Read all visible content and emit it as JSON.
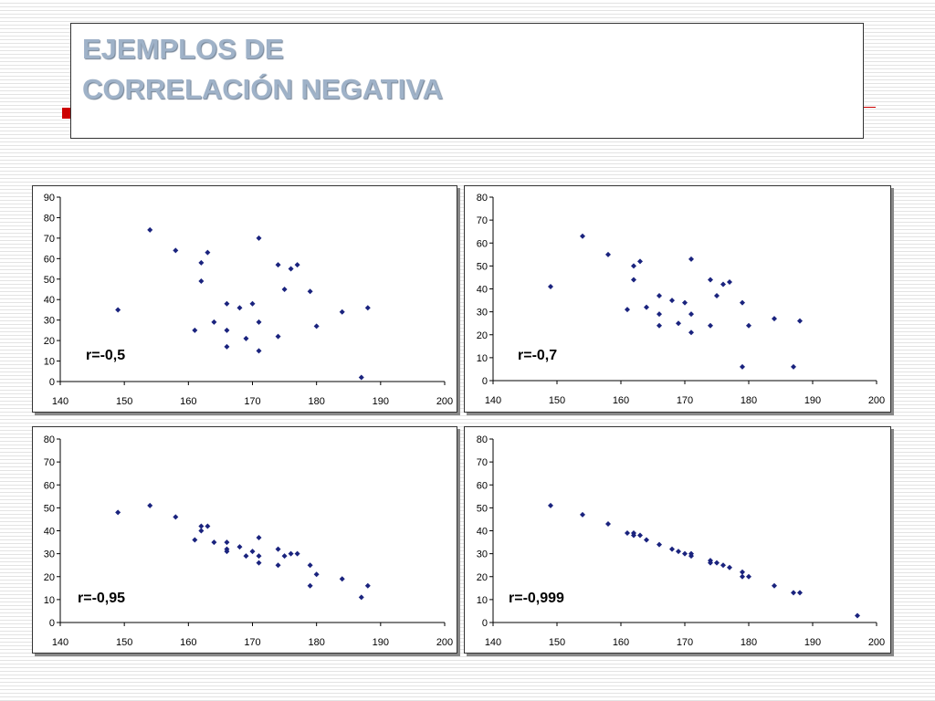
{
  "slide": {
    "title_line1": "EJEMPLOS DE",
    "title_line2": "CORRELACIÓN NEGATIVA"
  },
  "colors": {
    "points": "#1a237e",
    "title": "#9fb2c8",
    "accent": "#cc0000"
  },
  "chart_data": [
    {
      "type": "scatter",
      "annotation": "r=-0,5",
      "xlim": [
        140,
        200
      ],
      "ylim": [
        0,
        90
      ],
      "xticks": [
        140,
        150,
        160,
        170,
        180,
        190,
        200
      ],
      "yticks": [
        0,
        10,
        20,
        30,
        40,
        50,
        60,
        70,
        80,
        90
      ],
      "grid": false,
      "points": [
        [
          149,
          35
        ],
        [
          154,
          74
        ],
        [
          158,
          64
        ],
        [
          161,
          25
        ],
        [
          162,
          58
        ],
        [
          162,
          49
        ],
        [
          163,
          63
        ],
        [
          164,
          29
        ],
        [
          166,
          38
        ],
        [
          166,
          25
        ],
        [
          166,
          17
        ],
        [
          168,
          36
        ],
        [
          169,
          21
        ],
        [
          170,
          38
        ],
        [
          171,
          70
        ],
        [
          171,
          29
        ],
        [
          171,
          15
        ],
        [
          174,
          57
        ],
        [
          174,
          22
        ],
        [
          175,
          45
        ],
        [
          176,
          55
        ],
        [
          177,
          57
        ],
        [
          179,
          44
        ],
        [
          180,
          27
        ],
        [
          184,
          34
        ],
        [
          187,
          2
        ],
        [
          188,
          36
        ]
      ]
    },
    {
      "type": "scatter",
      "annotation": "r=-0,7",
      "xlim": [
        140,
        200
      ],
      "ylim": [
        0,
        80
      ],
      "xticks": [
        140,
        150,
        160,
        170,
        180,
        190,
        200
      ],
      "yticks": [
        0,
        10,
        20,
        30,
        40,
        50,
        60,
        70,
        80
      ],
      "grid": false,
      "points": [
        [
          149,
          41
        ],
        [
          154,
          63
        ],
        [
          158,
          55
        ],
        [
          161,
          31
        ],
        [
          162,
          50
        ],
        [
          162,
          44
        ],
        [
          163,
          52
        ],
        [
          164,
          32
        ],
        [
          166,
          37
        ],
        [
          166,
          29
        ],
        [
          166,
          24
        ],
        [
          168,
          35
        ],
        [
          169,
          25
        ],
        [
          170,
          34
        ],
        [
          171,
          53
        ],
        [
          171,
          29
        ],
        [
          171,
          21
        ],
        [
          174,
          44
        ],
        [
          174,
          24
        ],
        [
          175,
          37
        ],
        [
          176,
          42
        ],
        [
          177,
          43
        ],
        [
          179,
          34
        ],
        [
          179,
          6
        ],
        [
          180,
          24
        ],
        [
          184,
          27
        ],
        [
          187,
          6
        ],
        [
          188,
          26
        ]
      ]
    },
    {
      "type": "scatter",
      "annotation": "r=-0,95",
      "xlim": [
        140,
        200
      ],
      "ylim": [
        0,
        80
      ],
      "xticks": [
        140,
        150,
        160,
        170,
        180,
        190,
        200
      ],
      "yticks": [
        0,
        10,
        20,
        30,
        40,
        50,
        60,
        70,
        80
      ],
      "grid": false,
      "points": [
        [
          149,
          48
        ],
        [
          154,
          51
        ],
        [
          158,
          46
        ],
        [
          161,
          36
        ],
        [
          162,
          42
        ],
        [
          162,
          40
        ],
        [
          163,
          42
        ],
        [
          164,
          35
        ],
        [
          166,
          35
        ],
        [
          166,
          32
        ],
        [
          166,
          31
        ],
        [
          168,
          33
        ],
        [
          169,
          29
        ],
        [
          170,
          31
        ],
        [
          171,
          37
        ],
        [
          171,
          29
        ],
        [
          171,
          26
        ],
        [
          174,
          32
        ],
        [
          174,
          25
        ],
        [
          175,
          29
        ],
        [
          176,
          30
        ],
        [
          177,
          30
        ],
        [
          179,
          25
        ],
        [
          179,
          16
        ],
        [
          180,
          21
        ],
        [
          184,
          19
        ],
        [
          187,
          11
        ],
        [
          188,
          16
        ]
      ]
    },
    {
      "type": "scatter",
      "annotation": "r=-0,999",
      "xlim": [
        140,
        200
      ],
      "ylim": [
        0,
        80
      ],
      "xticks": [
        140,
        150,
        160,
        170,
        180,
        190,
        200
      ],
      "yticks": [
        0,
        10,
        20,
        30,
        40,
        50,
        60,
        70,
        80
      ],
      "grid": false,
      "points": [
        [
          149,
          51
        ],
        [
          154,
          47
        ],
        [
          158,
          43
        ],
        [
          161,
          39
        ],
        [
          162,
          39
        ],
        [
          162,
          38
        ],
        [
          163,
          38
        ],
        [
          164,
          36
        ],
        [
          166,
          34
        ],
        [
          168,
          32
        ],
        [
          169,
          31
        ],
        [
          170,
          30
        ],
        [
          171,
          30
        ],
        [
          171,
          29
        ],
        [
          174,
          27
        ],
        [
          174,
          26
        ],
        [
          175,
          26
        ],
        [
          176,
          25
        ],
        [
          177,
          24
        ],
        [
          179,
          22
        ],
        [
          179,
          20
        ],
        [
          180,
          20
        ],
        [
          184,
          16
        ],
        [
          187,
          13
        ],
        [
          188,
          13
        ],
        [
          197,
          3
        ]
      ]
    }
  ]
}
